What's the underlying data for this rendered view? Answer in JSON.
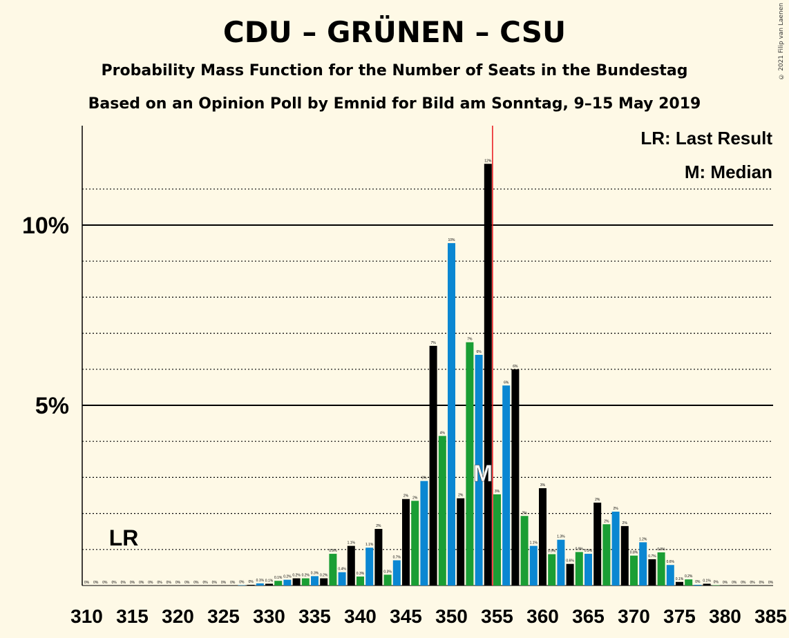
{
  "title": "CDU – GRÜNEN – CSU",
  "subtitle": "Probability Mass Function for the Number of Seats in the Bundestag",
  "source": "Based on an Opinion Poll by Emnid for Bild am Sonntag, 9–15 May 2019",
  "copyright": "© 2021 Filip van Laenen",
  "legend": {
    "lr": "LR: Last Result",
    "median": "M: Median"
  },
  "markers": {
    "lr_label": "LR",
    "median_label": "M",
    "last_result_seats": 311,
    "median_seats": 353,
    "majority_line_seats": 355
  },
  "colors": {
    "black": "#000000",
    "green": "#1a9e34",
    "blue": "#0a87d2",
    "majority_line": "#e8141a",
    "background": "#fef9e6"
  },
  "chart_data": {
    "type": "bar",
    "xlabel": "",
    "ylabel": "",
    "x_ticks": [
      310,
      315,
      320,
      325,
      330,
      335,
      340,
      345,
      350,
      355,
      360,
      365,
      370,
      375,
      380,
      385
    ],
    "x_tick_labels": [
      "310",
      "315",
      "320",
      "325",
      "330",
      "335",
      "340",
      "345",
      "350",
      "355",
      "360",
      "365",
      "370",
      "375",
      "380",
      "385"
    ],
    "y_ticks_labeled": [
      5,
      10
    ],
    "y_tick_labels": [
      "5%",
      "10%"
    ],
    "ylim": [
      0,
      12.7
    ],
    "grid": "dotted every 1%, solid at 5% and 10%",
    "x": [
      310,
      311,
      312,
      313,
      314,
      315,
      316,
      317,
      318,
      319,
      320,
      321,
      322,
      323,
      324,
      325,
      326,
      327,
      328,
      329,
      330,
      331,
      332,
      333,
      334,
      335,
      336,
      337,
      338,
      339,
      340,
      341,
      342,
      343,
      344,
      345,
      346,
      347,
      348,
      349,
      350,
      351,
      352,
      353,
      354,
      355,
      356,
      357,
      358,
      359,
      360,
      361,
      362,
      363,
      364,
      365,
      366,
      367,
      368,
      369,
      370,
      371,
      372,
      373,
      374,
      375,
      376,
      377,
      378,
      379,
      380,
      381,
      382,
      383,
      384,
      385
    ],
    "values": [
      0,
      0,
      0,
      0,
      0,
      0,
      0,
      0,
      0,
      0,
      0,
      0,
      0,
      0,
      0,
      0,
      0,
      0.01,
      0.02,
      0.06,
      0.05,
      0.13,
      0.16,
      0.2,
      0.2,
      0.26,
      0.2,
      0.88,
      0.37,
      1.1,
      0.25,
      1.05,
      1.57,
      0.3,
      0.7,
      2.4,
      2.35,
      2.9,
      6.65,
      4.15,
      9.5,
      2.42,
      6.75,
      6.4,
      11.7,
      2.53,
      5.55,
      6.0,
      1.93,
      1.1,
      2.7,
      0.87,
      1.27,
      0.6,
      0.93,
      0.88,
      2.3,
      1.7,
      2.05,
      1.65,
      0.83,
      1.2,
      0.73,
      0.92,
      0.57,
      0.1,
      0.17,
      0.02,
      0.05,
      0.01,
      0,
      0,
      0,
      0,
      0,
      0
    ],
    "bar_colors": [
      "black",
      "green",
      "blue",
      "black",
      "green",
      "blue",
      "black",
      "green",
      "blue",
      "black",
      "green",
      "blue",
      "black",
      "green",
      "blue",
      "black",
      "green",
      "blue",
      "black",
      "blue",
      "black",
      "green",
      "blue",
      "black",
      "green",
      "blue",
      "black",
      "green",
      "blue",
      "black",
      "green",
      "blue",
      "black",
      "green",
      "blue",
      "black",
      "green",
      "blue",
      "black",
      "green",
      "blue",
      "black",
      "green",
      "blue",
      "black",
      "green",
      "blue",
      "black",
      "green",
      "blue",
      "black",
      "green",
      "blue",
      "black",
      "green",
      "blue",
      "black",
      "green",
      "blue",
      "black",
      "green",
      "blue",
      "black",
      "green",
      "blue",
      "black",
      "green",
      "blue",
      "black",
      "green",
      "blue",
      "black",
      "green",
      "blue",
      "black",
      "green"
    ],
    "data_labels": [
      "0%",
      "0%",
      "0%",
      "0%",
      "0%",
      "0%",
      "0%",
      "0%",
      "0%",
      "0%",
      "0%",
      "0%",
      "0%",
      "0%",
      "0%",
      "0%",
      "0%",
      "0%",
      "0%",
      "0.1%",
      "0.1%",
      "0.1%",
      "0.2%",
      "0.2%",
      "0.2%",
      "0.3%",
      "0.2%",
      "0.9%",
      "0.4%",
      "1.1%",
      "0.3%",
      "1.1%",
      "2%",
      "0.3%",
      "0.7%",
      "2%",
      "2%",
      "3%",
      "7%",
      "4%",
      "10%",
      "2%",
      "7%",
      "6%",
      "12%",
      "3%",
      "6%",
      "6%",
      "2%",
      "1.1%",
      "3%",
      "0.9%",
      "1.3%",
      "0.6%",
      "0.9%",
      "0.9%",
      "2%",
      "2%",
      "2%",
      "2%",
      "0.8%",
      "1.2%",
      "0.7%",
      "0.9%",
      "0.6%",
      "0.1%",
      "0.2%",
      "0%",
      "0.1%",
      "0%",
      "0%",
      "0%",
      "0%",
      "0%",
      "0%",
      "0%"
    ]
  }
}
